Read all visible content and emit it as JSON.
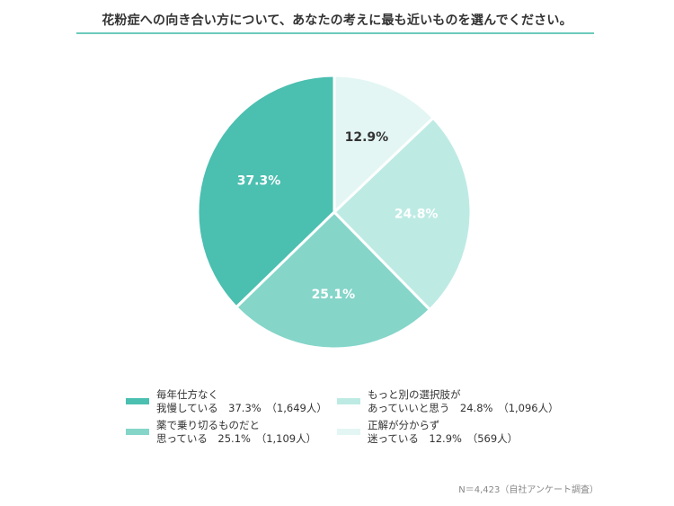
{
  "title": "花粉症への向き合い方について、あなたの考えに最も近いものを選んでください。",
  "note": "N＝4,423（自社アンケート調査）",
  "colors": {
    "rule": "#6ccbbb",
    "slices": [
      "#4bbfb0",
      "#85d5c9",
      "#bdebe4",
      "#e3f6f3"
    ],
    "label_light": "#ffffff",
    "label_dark": "#333333"
  },
  "chart_data": {
    "type": "pie",
    "start_angle_deg": 0,
    "direction": "clockwise",
    "slices": [
      {
        "label": "毎年仕方なく 我慢している",
        "value": 37.3,
        "display": "37.3%"
      },
      {
        "label": "薬で乗り切るものだと 思っている",
        "value": 25.1,
        "display": "25.1%"
      },
      {
        "label": "もっと別の選択肢が あっていいと思う",
        "value": 24.8,
        "display": "24.8%"
      },
      {
        "label": "正解が分からず 迷っている",
        "value": 12.9,
        "display": "12.9%"
      }
    ],
    "legend_placement": "bottom"
  },
  "legend": [
    {
      "line1": "毎年仕方なく",
      "line2": "我慢している　37.3%　（1,649人）"
    },
    {
      "line1": "薬で乗り切るものだと",
      "line2": "思っている　25.1%　（1,109人）"
    },
    {
      "line1": "もっと別の選択肢が",
      "line2": "あっていいと思う　24.8%　（1,096人）"
    },
    {
      "line1": "正解が分からず",
      "line2": "迷っている　12.9%　（569人）"
    }
  ]
}
